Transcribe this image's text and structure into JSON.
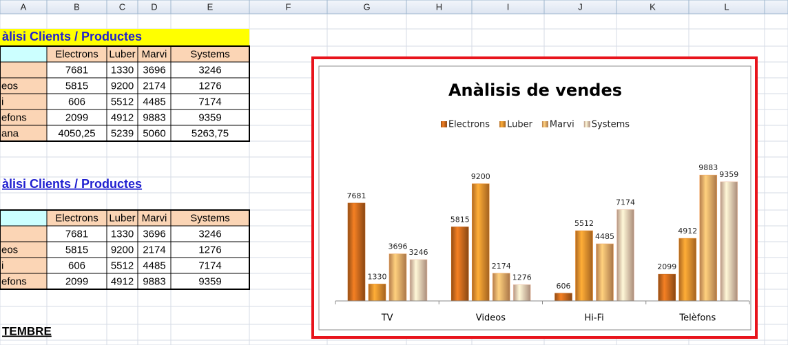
{
  "columns": [
    "A",
    "B",
    "C",
    "D",
    "E",
    "F",
    "G",
    "H",
    "I",
    "J",
    "K",
    "L"
  ],
  "sheet": {
    "title": "àlisi Clients / Productes",
    "table1": {
      "header": [
        "Electrons",
        "Luber",
        "Marvi",
        "Systems"
      ],
      "rows": [
        {
          "cells": [
            "7681",
            "1330",
            "3696",
            "3246"
          ]
        },
        {
          "label": "eos",
          "cells": [
            "5815",
            "9200",
            "2174",
            "1276"
          ]
        },
        {
          "label": "i",
          "cells": [
            "606",
            "5512",
            "4485",
            "7174"
          ]
        },
        {
          "label": "efons",
          "cells": [
            "2099",
            "4912",
            "9883",
            "9359"
          ]
        },
        {
          "label": "ana",
          "cells": [
            "4050,25",
            "5239",
            "5060",
            "5263,75"
          ]
        }
      ]
    },
    "title2": "àlisi Clients / Productes",
    "table2": {
      "header": [
        "Electrons",
        "Luber",
        "Marvi",
        "Systems"
      ],
      "rows": [
        {
          "cells": [
            "7681",
            "1330",
            "3696",
            "3246"
          ]
        },
        {
          "label": "eos",
          "cells": [
            "5815",
            "9200",
            "2174",
            "1276"
          ]
        },
        {
          "label": "i",
          "cells": [
            "606",
            "5512",
            "4485",
            "7174"
          ]
        },
        {
          "label": "efons",
          "cells": [
            "2099",
            "4912",
            "9883",
            "9359"
          ]
        }
      ]
    },
    "footer": "TEMBRE"
  },
  "chart_data": {
    "type": "bar",
    "title": "Anàlisis de vendes",
    "categories": [
      "TV",
      "Videos",
      "Hi-Fi",
      "Telèfons"
    ],
    "series": [
      {
        "name": "Electrons",
        "color": "#c4661c",
        "values": [
          7681,
          5815,
          606,
          2099
        ]
      },
      {
        "name": "Luber",
        "color": "#e98b2c",
        "values": [
          1330,
          9200,
          5512,
          4912
        ]
      },
      {
        "name": "Marvi",
        "color": "#f1a765",
        "values": [
          3696,
          2174,
          4485,
          9883
        ]
      },
      {
        "name": "Systems",
        "color": "#f3c6ad",
        "values": [
          3246,
          1276,
          7174,
          9359
        ]
      }
    ],
    "ylim": [
      0,
      12000
    ],
    "legend": "top"
  }
}
